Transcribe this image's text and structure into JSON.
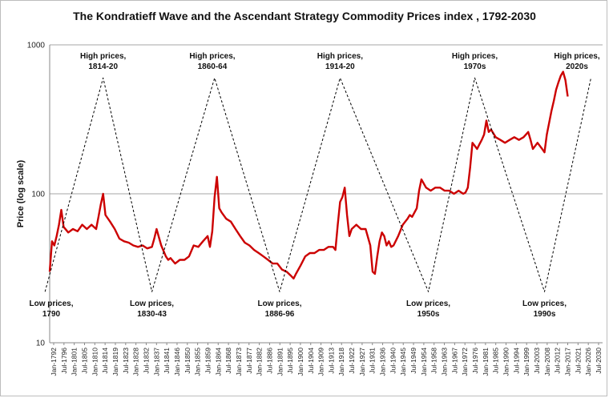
{
  "chart_data": {
    "type": "line",
    "title": "The Kondratieff Wave and the Ascendant Strategy Commodity Prices index , 1792-2030",
    "ylabel": "Price (log scale)",
    "xlabel": "",
    "y_scale": "log",
    "ylim": [
      10,
      1000
    ],
    "xlim": [
      1792,
      2030
    ],
    "y_ticks": [
      "10",
      "100",
      "1000"
    ],
    "x_tick_labels": [
      "Jan-1792",
      "Jul-1796",
      "Jan-1801",
      "Jul-1805",
      "Jan-1810",
      "Jul-1814",
      "Jan-1819",
      "Jul-1823",
      "Jan-1828",
      "Jul-1832",
      "Jan-1837",
      "Jul-1841",
      "Jan-1846",
      "Jul-1850",
      "Jan-1855",
      "Jul-1859",
      "Jan-1864",
      "Jul-1868",
      "Jan-1873",
      "Jul-1877",
      "Jan-1882",
      "Jul-1886",
      "Jan-1891",
      "Jul-1895",
      "Jan-1900",
      "Jul-1904",
      "Jan-1909",
      "Jul-1913",
      "Jan-1918",
      "Jul-1922",
      "Jan-1927",
      "Jul-1931",
      "Jan-1936",
      "Jul-1940",
      "Jan-1945",
      "Jul-1949",
      "Jan-1954",
      "Jul-1958",
      "Jan-1963",
      "Jul-1967",
      "Jan-1972",
      "Jul-1976",
      "Jan-1981",
      "Jul-1985",
      "Jan-1990",
      "Jul-1994",
      "Jan-1999",
      "Jul-2003",
      "Jan-2008",
      "Jul-2012",
      "Jan-2017",
      "Jul-2021",
      "Jan-2026",
      "Jul-2030"
    ],
    "gridlines": "horizontal at 100 and 1000",
    "series": [
      {
        "name": "",
        "color": "#cc0000",
        "x": [
          1792,
          1793,
          1794,
          1795,
          1796,
          1797,
          1798,
          1800,
          1802,
          1804,
          1806,
          1808,
          1810,
          1812,
          1813,
          1814,
          1815,
          1816,
          1818,
          1820,
          1822,
          1824,
          1826,
          1828,
          1830,
          1832,
          1834,
          1836,
          1837,
          1838,
          1840,
          1842,
          1843,
          1844,
          1846,
          1848,
          1850,
          1852,
          1854,
          1856,
          1858,
          1860,
          1861,
          1862,
          1863,
          1864,
          1865,
          1866,
          1868,
          1870,
          1872,
          1874,
          1876,
          1878,
          1880,
          1882,
          1884,
          1886,
          1888,
          1890,
          1892,
          1894,
          1896,
          1897,
          1898,
          1900,
          1902,
          1904,
          1906,
          1908,
          1910,
          1912,
          1914,
          1915,
          1916,
          1917,
          1918,
          1919,
          1920,
          1921,
          1922,
          1924,
          1926,
          1928,
          1930,
          1931,
          1932,
          1933,
          1934,
          1935,
          1936,
          1937,
          1938,
          1939,
          1940,
          1942,
          1944,
          1946,
          1947,
          1948,
          1950,
          1951,
          1952,
          1954,
          1956,
          1958,
          1960,
          1962,
          1964,
          1966,
          1968,
          1970,
          1971,
          1972,
          1973,
          1974,
          1975,
          1976,
          1977,
          1978,
          1979,
          1980,
          1981,
          1982,
          1984,
          1986,
          1988,
          1990,
          1992,
          1994,
          1996,
          1998,
          1999,
          2000,
          2002,
          2004,
          2005,
          2006,
          2007,
          2008,
          2009,
          2010,
          2011,
          2012,
          2013,
          2014,
          2015
        ],
        "y": [
          30,
          48,
          45,
          52,
          62,
          78,
          60,
          55,
          58,
          56,
          62,
          58,
          62,
          58,
          70,
          85,
          100,
          72,
          65,
          58,
          50,
          48,
          47,
          45,
          44,
          45,
          43,
          44,
          50,
          58,
          45,
          38,
          36,
          37,
          34,
          36,
          36,
          38,
          45,
          44,
          48,
          52,
          44,
          56,
          95,
          130,
          80,
          75,
          68,
          65,
          58,
          52,
          47,
          45,
          42,
          40,
          38,
          36,
          34,
          34,
          31,
          30,
          28,
          27,
          29,
          33,
          38,
          40,
          40,
          42,
          42,
          44,
          44,
          42,
          62,
          88,
          95,
          110,
          72,
          52,
          58,
          62,
          58,
          58,
          45,
          30,
          29,
          38,
          48,
          55,
          52,
          45,
          48,
          44,
          45,
          52,
          62,
          68,
          72,
          70,
          80,
          105,
          125,
          110,
          105,
          110,
          110,
          105,
          105,
          100,
          105,
          100,
          102,
          110,
          150,
          220,
          210,
          200,
          215,
          230,
          250,
          310,
          260,
          270,
          240,
          230,
          220,
          230,
          240,
          230,
          240,
          260,
          230,
          200,
          220,
          200,
          190,
          250,
          300,
          360,
          420,
          500,
          560,
          620,
          660,
          580,
          450
        ]
      },
      {
        "name": "",
        "color": "#000000",
        "dashed": true,
        "x": [
          1790,
          1815,
          1836,
          1863,
          1891,
          1917,
          1955,
          1975,
          2005,
          2025
        ],
        "y": [
          22,
          600,
          22,
          600,
          22,
          600,
          22,
          600,
          22,
          600
        ]
      }
    ],
    "annotations": [
      {
        "lines": [
          "High prices,",
          "1814-20"
        ],
        "x": 1815
      },
      {
        "lines": [
          "High prices,",
          "1860-64"
        ],
        "x": 1862
      },
      {
        "lines": [
          "High prices,",
          "1914-20"
        ],
        "x": 1917
      },
      {
        "lines": [
          "High prices,",
          "1970s"
        ],
        "x": 1975
      },
      {
        "lines": [
          "High prices,",
          "2020s"
        ],
        "x": 2023
      },
      {
        "lines": [
          "Low prices,",
          "1790"
        ],
        "x": 1790
      },
      {
        "lines": [
          "Low prices,",
          "1830-43"
        ],
        "x": 1836
      },
      {
        "lines": [
          "Low prices,",
          "1886-96"
        ],
        "x": 1891
      },
      {
        "lines": [
          "Low prices,",
          "1950s"
        ],
        "x": 1955
      },
      {
        "lines": [
          "Low prices,",
          "1990s"
        ],
        "x": 2005
      }
    ]
  }
}
